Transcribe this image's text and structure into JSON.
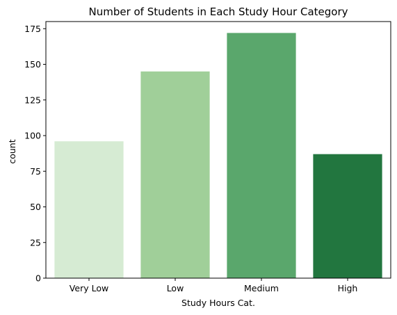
{
  "chart_data": {
    "type": "bar",
    "title": "Number of Students in Each Study Hour Category",
    "xlabel": "Study Hours Cat.",
    "ylabel": "count",
    "categories": [
      "Very Low",
      "Low",
      "Medium",
      "High"
    ],
    "values": [
      96,
      145,
      172,
      87
    ],
    "bar_colors": [
      "#d6ebd3",
      "#a0cf99",
      "#5aa76c",
      "#22763f"
    ],
    "ylim": [
      0,
      180
    ],
    "yticks": [
      0,
      25,
      50,
      75,
      100,
      125,
      150,
      175
    ],
    "grid": false,
    "legend": "none"
  }
}
